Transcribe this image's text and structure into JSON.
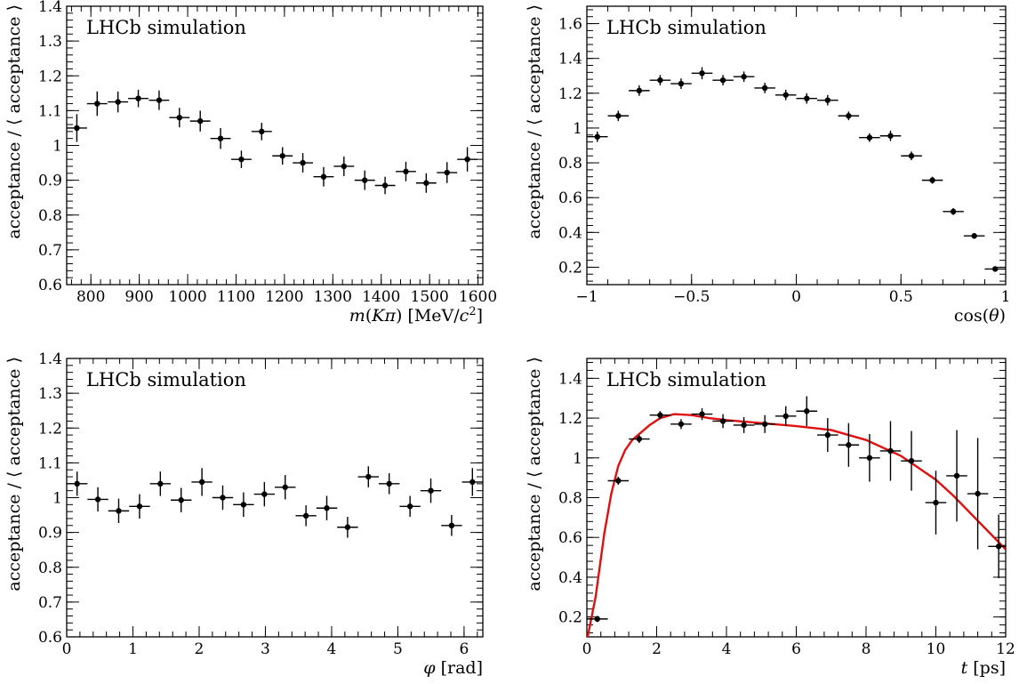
{
  "chart_data": [
    {
      "type": "scatter",
      "xlabel_parts": [
        "m",
        "(",
        "K",
        "π",
        ") [MeV/",
        "c",
        "2",
        "]"
      ],
      "ylabel": "acceptance / ⟨ acceptance ⟩",
      "annotation": "LHCb simulation",
      "xlim": [
        750,
        1610
      ],
      "ylim": [
        0.6,
        1.4
      ],
      "xticks": [
        800,
        900,
        1000,
        1100,
        1200,
        1300,
        1400,
        1500,
        1600
      ],
      "yticks": [
        0.6,
        0.7,
        0.8,
        0.9,
        1,
        1.1,
        1.2,
        1.3,
        1.4
      ],
      "x": [
        771,
        813,
        856,
        898,
        941,
        983,
        1026,
        1068,
        1111,
        1153,
        1196,
        1238,
        1281,
        1323,
        1366,
        1408,
        1451,
        1493,
        1536,
        1578
      ],
      "xerr": 21,
      "y": [
        1.05,
        1.12,
        1.125,
        1.135,
        1.13,
        1.08,
        1.07,
        1.02,
        0.96,
        1.04,
        0.97,
        0.95,
        0.91,
        0.94,
        0.9,
        0.885,
        0.925,
        0.892,
        0.922,
        0.96
      ],
      "yerr": [
        0.04,
        0.035,
        0.03,
        0.025,
        0.028,
        0.028,
        0.03,
        0.03,
        0.025,
        0.025,
        0.025,
        0.028,
        0.028,
        0.028,
        0.028,
        0.025,
        0.028,
        0.028,
        0.03,
        0.035
      ]
    },
    {
      "type": "scatter",
      "xlabel_parts": [
        "cos(",
        "θ",
        ")"
      ],
      "ylabel": "acceptance / ⟨ acceptance ⟩",
      "annotation": "LHCb simulation",
      "xlim": [
        -1,
        1
      ],
      "ylim": [
        0.1,
        1.7
      ],
      "xticks": [
        -1,
        -0.5,
        0,
        0.5,
        1
      ],
      "xtick_labels": [
        "−1",
        "−0.5",
        "0",
        "0.5",
        "1"
      ],
      "yticks": [
        0.2,
        0.4,
        0.6,
        0.8,
        1,
        1.2,
        1.4,
        1.6
      ],
      "x": [
        -0.95,
        -0.85,
        -0.75,
        -0.65,
        -0.55,
        -0.45,
        -0.35,
        -0.25,
        -0.15,
        -0.05,
        0.05,
        0.15,
        0.25,
        0.35,
        0.45,
        0.55,
        0.65,
        0.75,
        0.85,
        0.95
      ],
      "xerr": 0.05,
      "y": [
        0.95,
        1.07,
        1.215,
        1.275,
        1.255,
        1.315,
        1.275,
        1.295,
        1.23,
        1.19,
        1.17,
        1.16,
        1.07,
        0.945,
        0.955,
        0.84,
        0.7,
        0.52,
        0.38,
        0.19
      ],
      "yerr": [
        0.03,
        0.03,
        0.03,
        0.03,
        0.03,
        0.035,
        0.03,
        0.03,
        0.03,
        0.03,
        0.03,
        0.03,
        0.025,
        0.025,
        0.03,
        0.025,
        0.02,
        0.02,
        0.015,
        0.01
      ]
    },
    {
      "type": "scatter",
      "xlabel_parts": [
        "φ",
        " [rad]"
      ],
      "ylabel": "acceptance / ⟨ acceptance ⟩",
      "annotation": "LHCb simulation",
      "xlim": [
        0,
        6.283
      ],
      "ylim": [
        0.6,
        1.4
      ],
      "xticks": [
        0,
        1,
        2,
        3,
        4,
        5,
        6
      ],
      "yticks": [
        0.6,
        0.7,
        0.8,
        0.9,
        1,
        1.1,
        1.2,
        1.3,
        1.4
      ],
      "x": [
        0.157,
        0.471,
        0.785,
        1.1,
        1.414,
        1.728,
        2.042,
        2.356,
        2.67,
        2.985,
        3.299,
        3.613,
        3.927,
        4.241,
        4.555,
        4.869,
        5.184,
        5.498,
        5.812,
        6.126
      ],
      "xerr": 0.157,
      "y": [
        1.04,
        0.995,
        0.962,
        0.975,
        1.04,
        0.993,
        1.045,
        1.0,
        0.98,
        1.01,
        1.03,
        0.948,
        0.97,
        0.915,
        1.06,
        1.04,
        0.975,
        1.02,
        0.92,
        1.045
      ],
      "yerr": [
        0.035,
        0.035,
        0.035,
        0.035,
        0.035,
        0.035,
        0.04,
        0.035,
        0.035,
        0.035,
        0.035,
        0.03,
        0.035,
        0.03,
        0.03,
        0.03,
        0.03,
        0.035,
        0.03,
        0.04
      ]
    },
    {
      "type": "scatter",
      "xlabel_parts": [
        "t",
        " [ps]"
      ],
      "ylabel": "acceptance / ⟨ acceptance ⟩",
      "annotation": "LHCb simulation",
      "xlim": [
        0,
        12
      ],
      "ylim": [
        0.1,
        1.5
      ],
      "xticks": [
        0,
        2,
        4,
        6,
        8,
        10,
        12
      ],
      "yticks": [
        0.2,
        0.4,
        0.6,
        0.8,
        1,
        1.2,
        1.4
      ],
      "x": [
        0.3,
        0.9,
        1.5,
        2.1,
        2.7,
        3.3,
        3.9,
        4.5,
        5.1,
        5.7,
        6.3,
        6.9,
        7.5,
        8.1,
        8.7,
        9.3,
        10.0,
        10.6,
        11.2,
        11.8
      ],
      "xerr": [
        0.3,
        0.3,
        0.3,
        0.3,
        0.3,
        0.3,
        0.3,
        0.3,
        0.3,
        0.3,
        0.3,
        0.3,
        0.3,
        0.3,
        0.3,
        0.3,
        0.3,
        0.3,
        0.3,
        0.3
      ],
      "y": [
        0.19,
        0.885,
        1.095,
        1.215,
        1.17,
        1.22,
        1.185,
        1.165,
        1.17,
        1.21,
        1.235,
        1.115,
        1.065,
        1.0,
        1.035,
        0.985,
        0.775,
        0.91,
        0.82,
        0.555
      ],
      "yerr": [
        0.015,
        0.02,
        0.02,
        0.02,
        0.025,
        0.03,
        0.035,
        0.04,
        0.045,
        0.05,
        0.075,
        0.085,
        0.11,
        0.12,
        0.15,
        0.15,
        0.16,
        0.23,
        0.28,
        0.16
      ],
      "fit_curve": {
        "x": [
          0.0,
          0.25,
          0.5,
          0.7,
          0.9,
          1.1,
          1.3,
          1.5,
          1.8,
          2.1,
          2.5,
          3.0,
          3.5,
          4.0,
          5.0,
          6.0,
          7.0,
          8.0,
          9.0,
          10.0,
          10.5,
          11.0,
          11.5,
          12.0
        ],
        "y": [
          0.08,
          0.3,
          0.62,
          0.82,
          0.96,
          1.04,
          1.09,
          1.12,
          1.165,
          1.2,
          1.22,
          1.215,
          1.2,
          1.19,
          1.175,
          1.16,
          1.14,
          1.09,
          1.01,
          0.89,
          0.81,
          0.72,
          0.63,
          0.54
        ]
      }
    }
  ]
}
